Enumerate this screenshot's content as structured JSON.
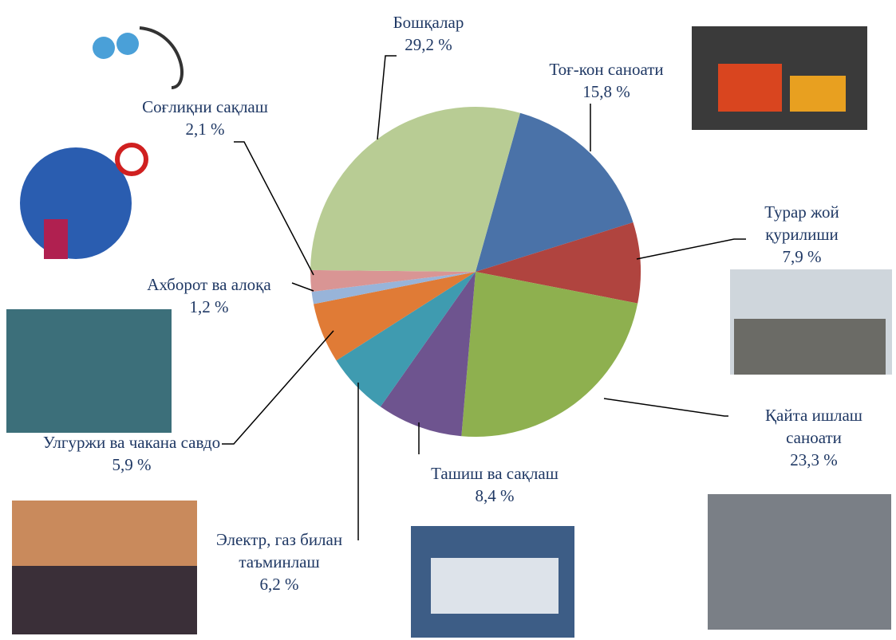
{
  "chart_data": {
    "type": "pie",
    "categories": [
      "Тоғ-кон саноати",
      "Турар жой қурилиши",
      "Қайта ишлаш саноати",
      "Ташиш ва сақлаш",
      "Электр, газ билан таъминлаш",
      "Улгуржи ва чакана савдо",
      "Ахборот ва алоқа",
      "Соғлиқни сақлаш",
      "Бошқалар"
    ],
    "values": [
      15.8,
      7.9,
      23.3,
      8.4,
      6.2,
      5.9,
      1.2,
      2.1,
      29.2
    ],
    "value_labels": [
      "15,8 %",
      "7,9 %",
      "23,3 %",
      "8,4 %",
      "6,2 %",
      "5,9 %",
      "1,2 %",
      "2,1 %",
      "29,2 %"
    ],
    "colors": [
      "#4a72a8",
      "#b0443f",
      "#8eb04f",
      "#6e548f",
      "#3f9bb0",
      "#e07b36",
      "#98b4d9",
      "#d99594",
      "#b8cc94"
    ]
  }
}
